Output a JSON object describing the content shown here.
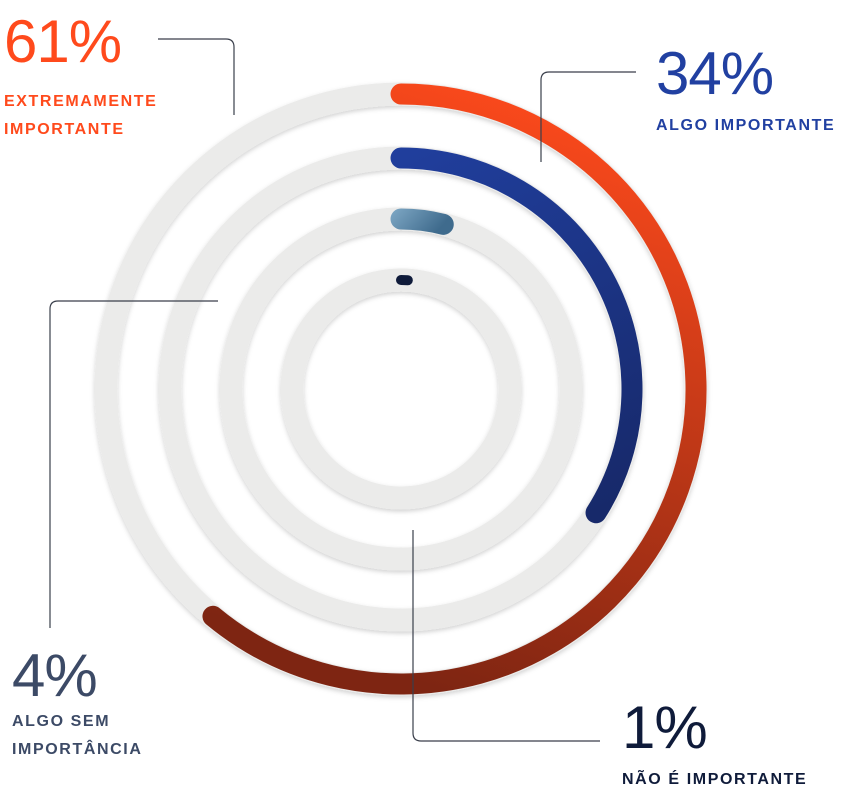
{
  "chart_data": {
    "type": "radial-bar",
    "series": [
      {
        "value": 61,
        "value_label": "61%",
        "label": "EXTREMAMENTE IMPORTANTE",
        "color": "#ff4a1c",
        "color_end": "#7e2512"
      },
      {
        "value": 34,
        "value_label": "34%",
        "label": "ALGO IMPORTANTE",
        "color": "#2140a1",
        "color_end": "#17296a"
      },
      {
        "value": 4,
        "value_label": "4%",
        "label": "ALGO SEM IMPORTÂNCIA",
        "color": "#8ab3cf",
        "color_end": "#3f6b8d"
      },
      {
        "value": 1,
        "value_label": "1%",
        "label": "NÃO É IMPORTANTE",
        "color": "#0f1b3a",
        "color_end": "#0f1b3a"
      }
    ],
    "track_color": "#ebebea",
    "label_colors": [
      "#ff4a1c",
      "#2140a1",
      "#3c4a66",
      "#0f1b3a"
    ]
  }
}
